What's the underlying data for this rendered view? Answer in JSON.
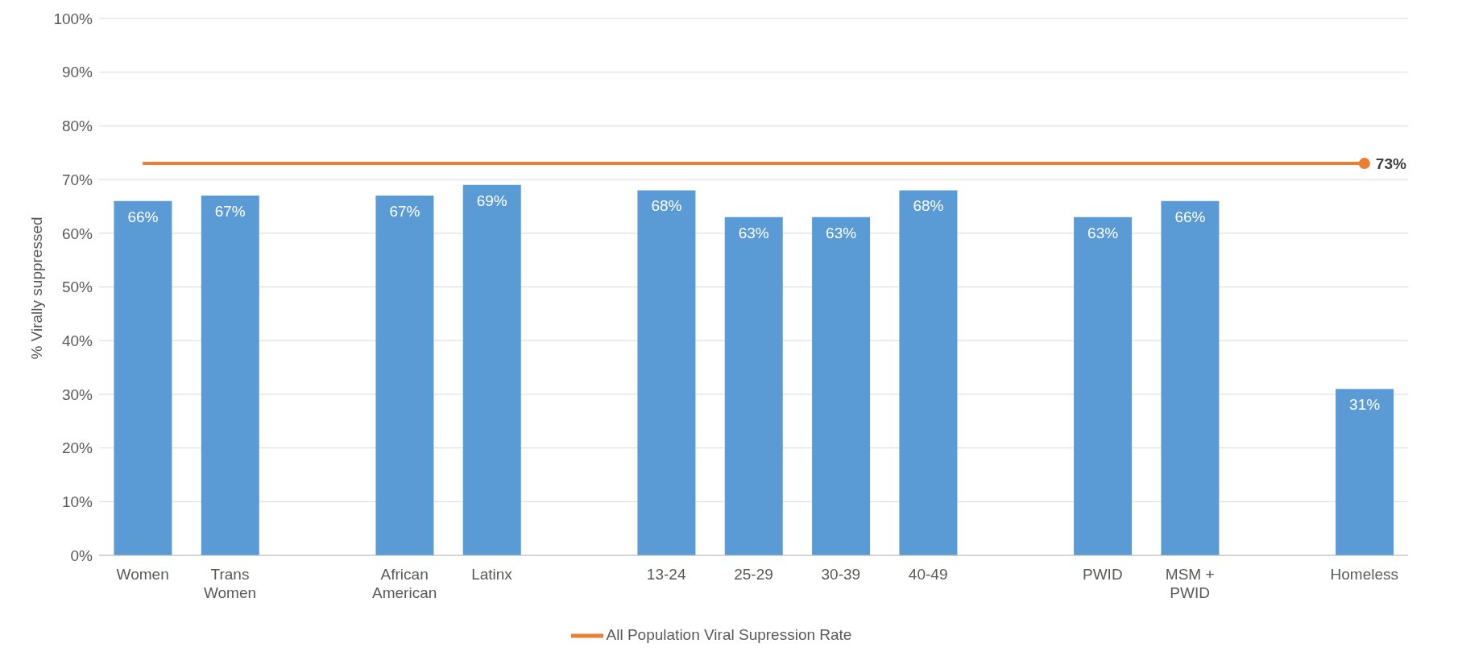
{
  "chart_data": {
    "type": "bar",
    "ylabel": "% Virally suppressed",
    "categories": [
      "Women",
      "Trans Women",
      null,
      "African American",
      "Latinx",
      null,
      "13-24",
      "25-29",
      "30-39",
      "40-49",
      null,
      "PWID",
      "MSM + PWID",
      null,
      "Homeless"
    ],
    "series": [
      {
        "color": "#5b9bd5",
        "values": [
          66,
          67,
          null,
          67,
          69,
          null,
          68,
          63,
          63,
          68,
          null,
          63,
          66,
          null,
          31
        ],
        "value_labels": [
          "66%",
          "67%",
          null,
          "67%",
          "69%",
          null,
          "68%",
          "63%",
          "63%",
          "68%",
          null,
          "63%",
          "66%",
          null,
          "31%"
        ]
      },
      {
        "type": "line",
        "name": "All Population Viral Supression Rate",
        "color": "#ed7d31",
        "values": [
          73,
          73,
          73,
          73,
          73,
          73,
          73,
          73,
          73,
          73,
          73,
          73,
          73,
          73,
          73
        ],
        "value_labels": [
          null,
          null,
          null,
          null,
          null,
          null,
          null,
          null,
          null,
          null,
          null,
          null,
          null,
          null,
          "73%"
        ]
      }
    ],
    "ylim": [
      0,
      100
    ],
    "yticks": [
      {
        "value": 0,
        "label": "0%"
      },
      {
        "value": 10,
        "label": "10%"
      },
      {
        "value": 20,
        "label": "20%"
      },
      {
        "value": 30,
        "label": "30%"
      },
      {
        "value": 40,
        "label": "40%"
      },
      {
        "value": 50,
        "label": "50%"
      },
      {
        "value": 60,
        "label": "60%"
      },
      {
        "value": 70,
        "label": "70%"
      },
      {
        "value": 80,
        "label": "80%"
      },
      {
        "value": 90,
        "label": "90%"
      },
      {
        "value": 100,
        "label": "100%"
      }
    ],
    "grid": "y",
    "legend": "bottom"
  }
}
